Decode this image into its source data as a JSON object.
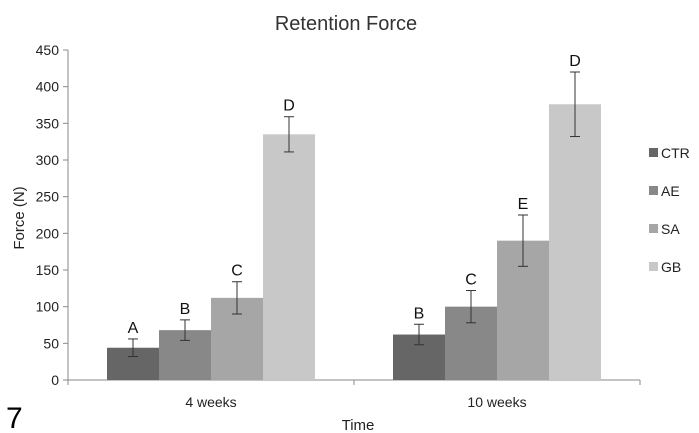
{
  "figure_label": "7",
  "chart_data": {
    "type": "bar",
    "title": "Retention Force",
    "xlabel": "Time",
    "ylabel": "Force (N)",
    "ylim": [
      0,
      450
    ],
    "yticks": [
      0,
      50,
      100,
      150,
      200,
      250,
      300,
      350,
      400,
      450
    ],
    "categories": [
      "4 weeks",
      "10 weeks"
    ],
    "legend_position": "right",
    "grid": false,
    "series": [
      {
        "name": "CTR",
        "color": "#666666",
        "values": [
          44,
          62
        ],
        "errors": [
          12,
          14
        ],
        "letters": [
          "A",
          "B"
        ]
      },
      {
        "name": "AE",
        "color": "#888888",
        "values": [
          68,
          100
        ],
        "errors": [
          14,
          22
        ],
        "letters": [
          "B",
          "C"
        ]
      },
      {
        "name": "SA",
        "color": "#a6a6a6",
        "values": [
          112,
          190
        ],
        "errors": [
          22,
          35
        ],
        "letters": [
          "C",
          "E"
        ]
      },
      {
        "name": "GB",
        "color": "#c8c8c8",
        "values": [
          335,
          376
        ],
        "errors": [
          24,
          44
        ],
        "letters": [
          "D",
          "D"
        ]
      }
    ]
  }
}
